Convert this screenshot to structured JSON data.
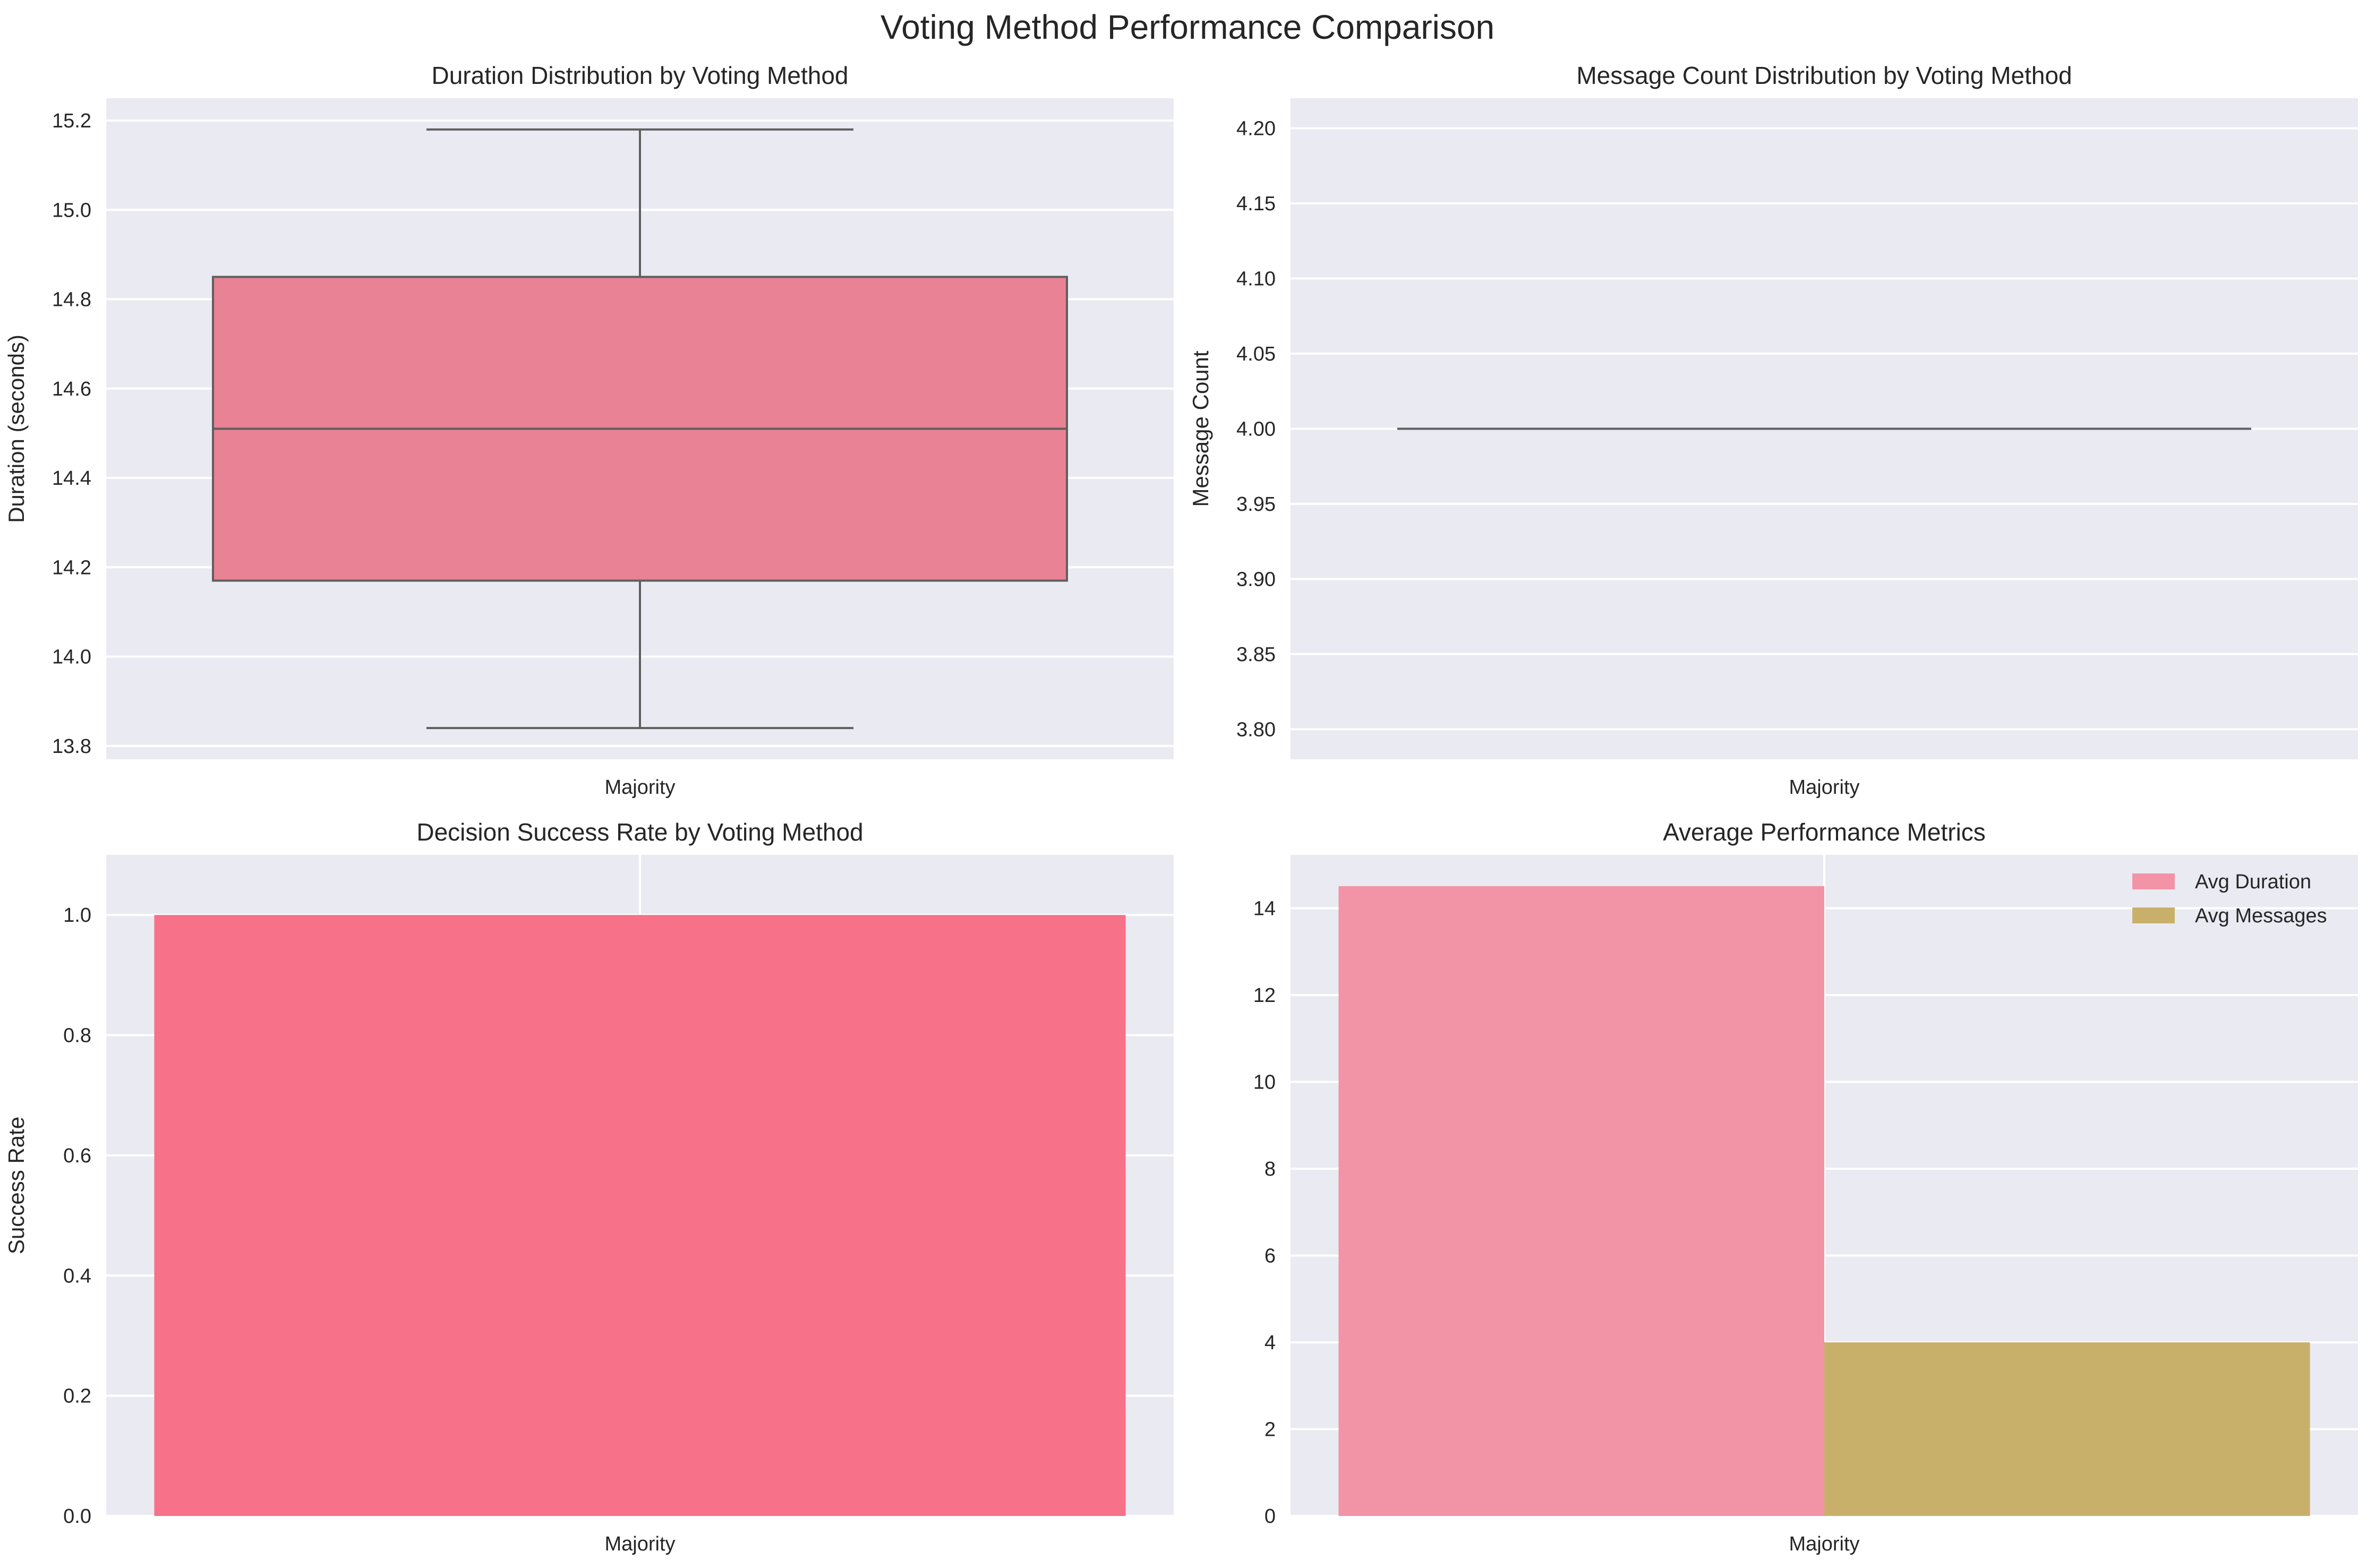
{
  "suptitle": "Voting Method Performance Comparison",
  "colors": {
    "background": "#eaeaf2",
    "grid": "#ffffff",
    "rose": "#f77189",
    "rose_light": "#f293a6",
    "olive": "#c9b06a",
    "box_line": "#5f5f5f"
  },
  "chart_data": [
    {
      "type": "box",
      "title": "Duration Distribution by Voting Method",
      "xlabel": "",
      "ylabel": "Duration (seconds)",
      "categories": [
        "Majority"
      ],
      "ylim": [
        13.77,
        15.25
      ],
      "yticks": [
        13.8,
        14.0,
        14.2,
        14.4,
        14.6,
        14.8,
        15.0,
        15.2
      ],
      "ytick_labels": [
        "13.8",
        "14.0",
        "14.2",
        "14.4",
        "14.6",
        "14.8",
        "15.0",
        "15.2"
      ],
      "grid": "y",
      "boxes": [
        {
          "category": "Majority",
          "whislo": 13.84,
          "q1": 14.17,
          "med": 14.51,
          "q3": 14.85,
          "whishi": 15.18
        }
      ]
    },
    {
      "type": "box",
      "title": "Message Count Distribution by Voting Method",
      "xlabel": "",
      "ylabel": "Message Count",
      "categories": [
        "Majority"
      ],
      "ylim": [
        3.78,
        4.22
      ],
      "yticks": [
        3.8,
        3.85,
        3.9,
        3.95,
        4.0,
        4.05,
        4.1,
        4.15,
        4.2
      ],
      "ytick_labels": [
        "3.80",
        "3.85",
        "3.90",
        "3.95",
        "4.00",
        "4.05",
        "4.10",
        "4.15",
        "4.20"
      ],
      "grid": "y",
      "boxes": [
        {
          "category": "Majority",
          "whislo": 4.0,
          "q1": 4.0,
          "med": 4.0,
          "q3": 4.0,
          "whishi": 4.0
        }
      ]
    },
    {
      "type": "bar",
      "title": "Decision Success Rate by Voting Method",
      "xlabel": "",
      "ylabel": "Success Rate",
      "categories": [
        "Majority"
      ],
      "values": [
        1.0
      ],
      "ylim": [
        0,
        1.1
      ],
      "yticks": [
        0.0,
        0.2,
        0.4,
        0.6,
        0.8,
        1.0
      ],
      "ytick_labels": [
        "0.0",
        "0.2",
        "0.4",
        "0.6",
        "0.8",
        "1.0"
      ],
      "grid": "both"
    },
    {
      "type": "bar",
      "title": "Average Performance Metrics",
      "xlabel": "",
      "ylabel": "",
      "categories": [
        "Majority"
      ],
      "series": [
        {
          "name": "Avg Duration",
          "values": [
            14.51
          ]
        },
        {
          "name": "Avg Messages",
          "values": [
            4.0
          ]
        }
      ],
      "ylim": [
        0,
        15.23
      ],
      "yticks": [
        0,
        2,
        4,
        6,
        8,
        10,
        12,
        14
      ],
      "ytick_labels": [
        "0",
        "2",
        "4",
        "6",
        "8",
        "10",
        "12",
        "14"
      ],
      "grid": "both",
      "legend": "top-right"
    }
  ]
}
